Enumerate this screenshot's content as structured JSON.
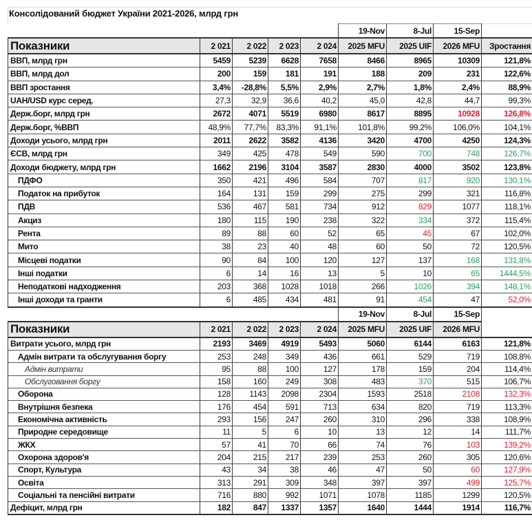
{
  "title": "Консолідований бюджет України 2021-2026, млрд грн",
  "colors": {
    "green": "#2ea05a",
    "red": "#e3202c",
    "header_bg": "#e6e6e6"
  },
  "dates": [
    "19-Nov",
    "8-Jul",
    "15-Sep"
  ],
  "header": {
    "label": "Показники",
    "columns": [
      "2 021",
      "2 022",
      "2 023",
      "2 024",
      "2025 MFU",
      "2025 UIF",
      "2026 MFU"
    ],
    "growth": "Зростання"
  },
  "revenue_rows": [
    {
      "label": "ВВП, млрд грн",
      "style": "bold",
      "values": [
        "5459",
        "5239",
        "6628",
        "7658",
        "8466",
        "8965",
        "10309"
      ],
      "growth": "121,8%",
      "colors": [
        "",
        "",
        "",
        "",
        "",
        "",
        "",
        ""
      ]
    },
    {
      "label": "ВВП, млрд дол",
      "style": "bold",
      "values": [
        "200",
        "159",
        "181",
        "191",
        "188",
        "209",
        "231"
      ],
      "growth": "122,6%",
      "colors": [
        "",
        "",
        "",
        "",
        "",
        "",
        "",
        ""
      ]
    },
    {
      "label": "ВВП зростання",
      "style": "bold",
      "values": [
        "3,4%",
        "-28,8%",
        "5,5%",
        "2,9%",
        "2,7%",
        "1,8%",
        "2,4%"
      ],
      "growth": "88,9%",
      "colors": [
        "",
        "",
        "",
        "",
        "",
        "",
        "",
        ""
      ]
    },
    {
      "label": "UAH/USD курс серед.",
      "style": "b",
      "values": [
        "27,3",
        "32,9",
        "36,6",
        "40,2",
        "45,0",
        "42,8",
        "44,7"
      ],
      "growth": "99,3%",
      "colors": [
        "",
        "",
        "",
        "",
        "",
        "",
        "",
        ""
      ]
    },
    {
      "label": "Держ.борг, млрд грн",
      "style": "bold",
      "values": [
        "2672",
        "4071",
        "5519",
        "6980",
        "8617",
        "8895",
        "10928"
      ],
      "growth": "126,8%",
      "colors": [
        "",
        "",
        "",
        "",
        "",
        "",
        "r",
        "r"
      ]
    },
    {
      "label": "Держ.борг, %ВВП",
      "style": "b",
      "values": [
        "48,9%",
        "77,7%",
        "83,3%",
        "91,1%",
        "101,8%",
        "99,2%",
        "106,0%"
      ],
      "growth": "104,1%",
      "colors": [
        "",
        "",
        "",
        "",
        "",
        "",
        "",
        ""
      ]
    },
    {
      "label": "Доходи усього, млрд грн",
      "style": "bold",
      "values": [
        "2011",
        "2622",
        "3582",
        "4136",
        "3420",
        "4700",
        "4250"
      ],
      "growth": "124,3%",
      "colors": [
        "",
        "",
        "",
        "",
        "",
        "",
        "",
        ""
      ]
    },
    {
      "label": "ЄСВ, млрд грн",
      "style": "b",
      "values": [
        "349",
        "425",
        "478",
        "549",
        "590",
        "700",
        "748"
      ],
      "growth": "126,7%",
      "colors": [
        "",
        "",
        "",
        "",
        "",
        "g",
        "g",
        "g"
      ]
    },
    {
      "label": "Доходи бюджету, млрд грн",
      "style": "bold",
      "values": [
        "1662",
        "2196",
        "3104",
        "3587",
        "2830",
        "4000",
        "3502"
      ],
      "growth": "123,8%",
      "colors": [
        "",
        "",
        "",
        "",
        "",
        "",
        "",
        ""
      ]
    },
    {
      "label": "ПДФО",
      "style": "ind",
      "values": [
        "350",
        "421",
        "496",
        "584",
        "707",
        "817",
        "920"
      ],
      "growth": "130,1%",
      "colors": [
        "",
        "",
        "",
        "",
        "",
        "g",
        "g",
        "g"
      ]
    },
    {
      "label": "Податок на прибуток",
      "style": "ind",
      "values": [
        "164",
        "131",
        "159",
        "299",
        "275",
        "299",
        "321"
      ],
      "growth": "116,8%",
      "colors": [
        "",
        "",
        "",
        "",
        "",
        "",
        "",
        ""
      ]
    },
    {
      "label": "ПДВ",
      "style": "ind",
      "values": [
        "536",
        "467",
        "581",
        "734",
        "912",
        "829",
        "1077"
      ],
      "growth": "118,1%",
      "colors": [
        "",
        "",
        "",
        "",
        "",
        "r",
        "",
        ""
      ]
    },
    {
      "label": "Акциз",
      "style": "ind",
      "values": [
        "180",
        "115",
        "190",
        "238",
        "322",
        "334",
        "372"
      ],
      "growth": "115,4%",
      "colors": [
        "",
        "",
        "",
        "",
        "",
        "g",
        "",
        ""
      ]
    },
    {
      "label": "Рента",
      "style": "ind",
      "values": [
        "89",
        "88",
        "60",
        "52",
        "65",
        "45",
        "67"
      ],
      "growth": "102,0%",
      "colors": [
        "",
        "",
        "",
        "",
        "",
        "r",
        "",
        ""
      ]
    },
    {
      "label": "Мито",
      "style": "ind",
      "values": [
        "38",
        "23",
        "40",
        "48",
        "60",
        "50",
        "72"
      ],
      "growth": "120,5%",
      "colors": [
        "",
        "",
        "",
        "",
        "",
        "",
        "",
        ""
      ]
    },
    {
      "label": "Місцеві податки",
      "style": "ind",
      "values": [
        "90",
        "84",
        "100",
        "120",
        "127",
        "137",
        "168"
      ],
      "growth": "131,8%",
      "colors": [
        "",
        "",
        "",
        "",
        "",
        "",
        "g",
        "g"
      ]
    },
    {
      "label": "Інші податки",
      "style": "ind",
      "values": [
        "6",
        "14",
        "16",
        "13",
        "5",
        "10",
        "65"
      ],
      "growth": "1444,5%",
      "colors": [
        "",
        "",
        "",
        "",
        "",
        "",
        "g",
        "g"
      ]
    },
    {
      "label": "Неподаткові надходження",
      "style": "ind",
      "values": [
        "203",
        "368",
        "1028",
        "1018",
        "266",
        "1026",
        "394"
      ],
      "growth": "148,1%",
      "colors": [
        "",
        "",
        "",
        "",
        "",
        "g",
        "g",
        "g"
      ]
    },
    {
      "label": "Інші доходи та гранти",
      "style": "ind",
      "values": [
        "6",
        "485",
        "434",
        "481",
        "91",
        "454",
        "47"
      ],
      "growth": "52,0%",
      "colors": [
        "",
        "",
        "",
        "",
        "",
        "g",
        "",
        "r"
      ]
    }
  ],
  "expense_rows": [
    {
      "label": "Витрати усього, млрд грн",
      "style": "bold",
      "values": [
        "2193",
        "3469",
        "4919",
        "5493",
        "5060",
        "6144",
        "6163"
      ],
      "growth": "121,8%",
      "colors": [
        "",
        "",
        "",
        "",
        "",
        "",
        "",
        ""
      ]
    },
    {
      "label": "Адмін витрати та обслугування боргу",
      "style": "ind",
      "values": [
        "253",
        "248",
        "349",
        "436",
        "661",
        "529",
        "719"
      ],
      "growth": "108,8%",
      "colors": [
        "",
        "",
        "",
        "",
        "",
        "",
        "",
        ""
      ]
    },
    {
      "label": "Адмін витрати",
      "style": "it",
      "values": [
        "95",
        "88",
        "100",
        "127",
        "178",
        "159",
        "204"
      ],
      "growth": "114,4%",
      "colors": [
        "",
        "",
        "",
        "",
        "",
        "",
        "",
        ""
      ]
    },
    {
      "label": "Обслуговання боргу",
      "style": "it",
      "values": [
        "158",
        "160",
        "249",
        "308",
        "483",
        "370",
        "515"
      ],
      "growth": "106,7%",
      "colors": [
        "",
        "",
        "",
        "",
        "",
        "g",
        "",
        ""
      ]
    },
    {
      "label": "Оборона",
      "style": "ind",
      "values": [
        "128",
        "1143",
        "2098",
        "2304",
        "1593",
        "2518",
        "2108"
      ],
      "growth": "132,3%",
      "colors": [
        "",
        "",
        "",
        "",
        "",
        "",
        "r",
        "r"
      ]
    },
    {
      "label": "Внутрішня безпека",
      "style": "ind",
      "values": [
        "176",
        "454",
        "591",
        "713",
        "634",
        "820",
        "719"
      ],
      "growth": "113,3%",
      "colors": [
        "",
        "",
        "",
        "",
        "",
        "",
        "",
        ""
      ]
    },
    {
      "label": "Економічна активність",
      "style": "ind",
      "values": [
        "293",
        "156",
        "247",
        "260",
        "310",
        "296",
        "338"
      ],
      "growth": "108,9%",
      "colors": [
        "",
        "",
        "",
        "",
        "",
        "",
        "",
        ""
      ]
    },
    {
      "label": "Природне середовище",
      "style": "ind",
      "values": [
        "11",
        "5",
        "6",
        "10",
        "13",
        "12",
        "14"
      ],
      "growth": "111,7%",
      "colors": [
        "",
        "",
        "",
        "",
        "",
        "",
        "",
        ""
      ]
    },
    {
      "label": "ЖКХ",
      "style": "ind",
      "values": [
        "57",
        "41",
        "70",
        "66",
        "74",
        "76",
        "103"
      ],
      "growth": "139,2%",
      "colors": [
        "",
        "",
        "",
        "",
        "",
        "",
        "r",
        "r"
      ]
    },
    {
      "label": "Охорона здоров'я",
      "style": "ind",
      "values": [
        "204",
        "215",
        "217",
        "239",
        "253",
        "260",
        "305"
      ],
      "growth": "120,6%",
      "colors": [
        "",
        "",
        "",
        "",
        "",
        "",
        "",
        ""
      ]
    },
    {
      "label": "Спорт, Культура",
      "style": "ind",
      "values": [
        "43",
        "34",
        "38",
        "46",
        "47",
        "50",
        "60"
      ],
      "growth": "127,9%",
      "colors": [
        "",
        "",
        "",
        "",
        "",
        "",
        "r",
        "r"
      ]
    },
    {
      "label": "Освіта",
      "style": "ind",
      "values": [
        "313",
        "291",
        "309",
        "348",
        "397",
        "397",
        "499"
      ],
      "growth": "125,7%",
      "colors": [
        "",
        "",
        "",
        "",
        "",
        "",
        "r",
        "r"
      ]
    },
    {
      "label": "Соціальні та пенсійні витрати",
      "style": "ind",
      "values": [
        "716",
        "880",
        "992",
        "1071",
        "1078",
        "1185",
        "1299"
      ],
      "growth": "120,5%",
      "colors": [
        "",
        "",
        "",
        "",
        "",
        "",
        "",
        ""
      ]
    },
    {
      "label": "Дефіцит, млрд грн",
      "style": "bold",
      "values": [
        "182",
        "847",
        "1337",
        "1357",
        "1640",
        "1444",
        "1914"
      ],
      "growth": "116,7%",
      "colors": [
        "",
        "",
        "",
        "",
        "",
        "",
        "",
        ""
      ]
    }
  ]
}
